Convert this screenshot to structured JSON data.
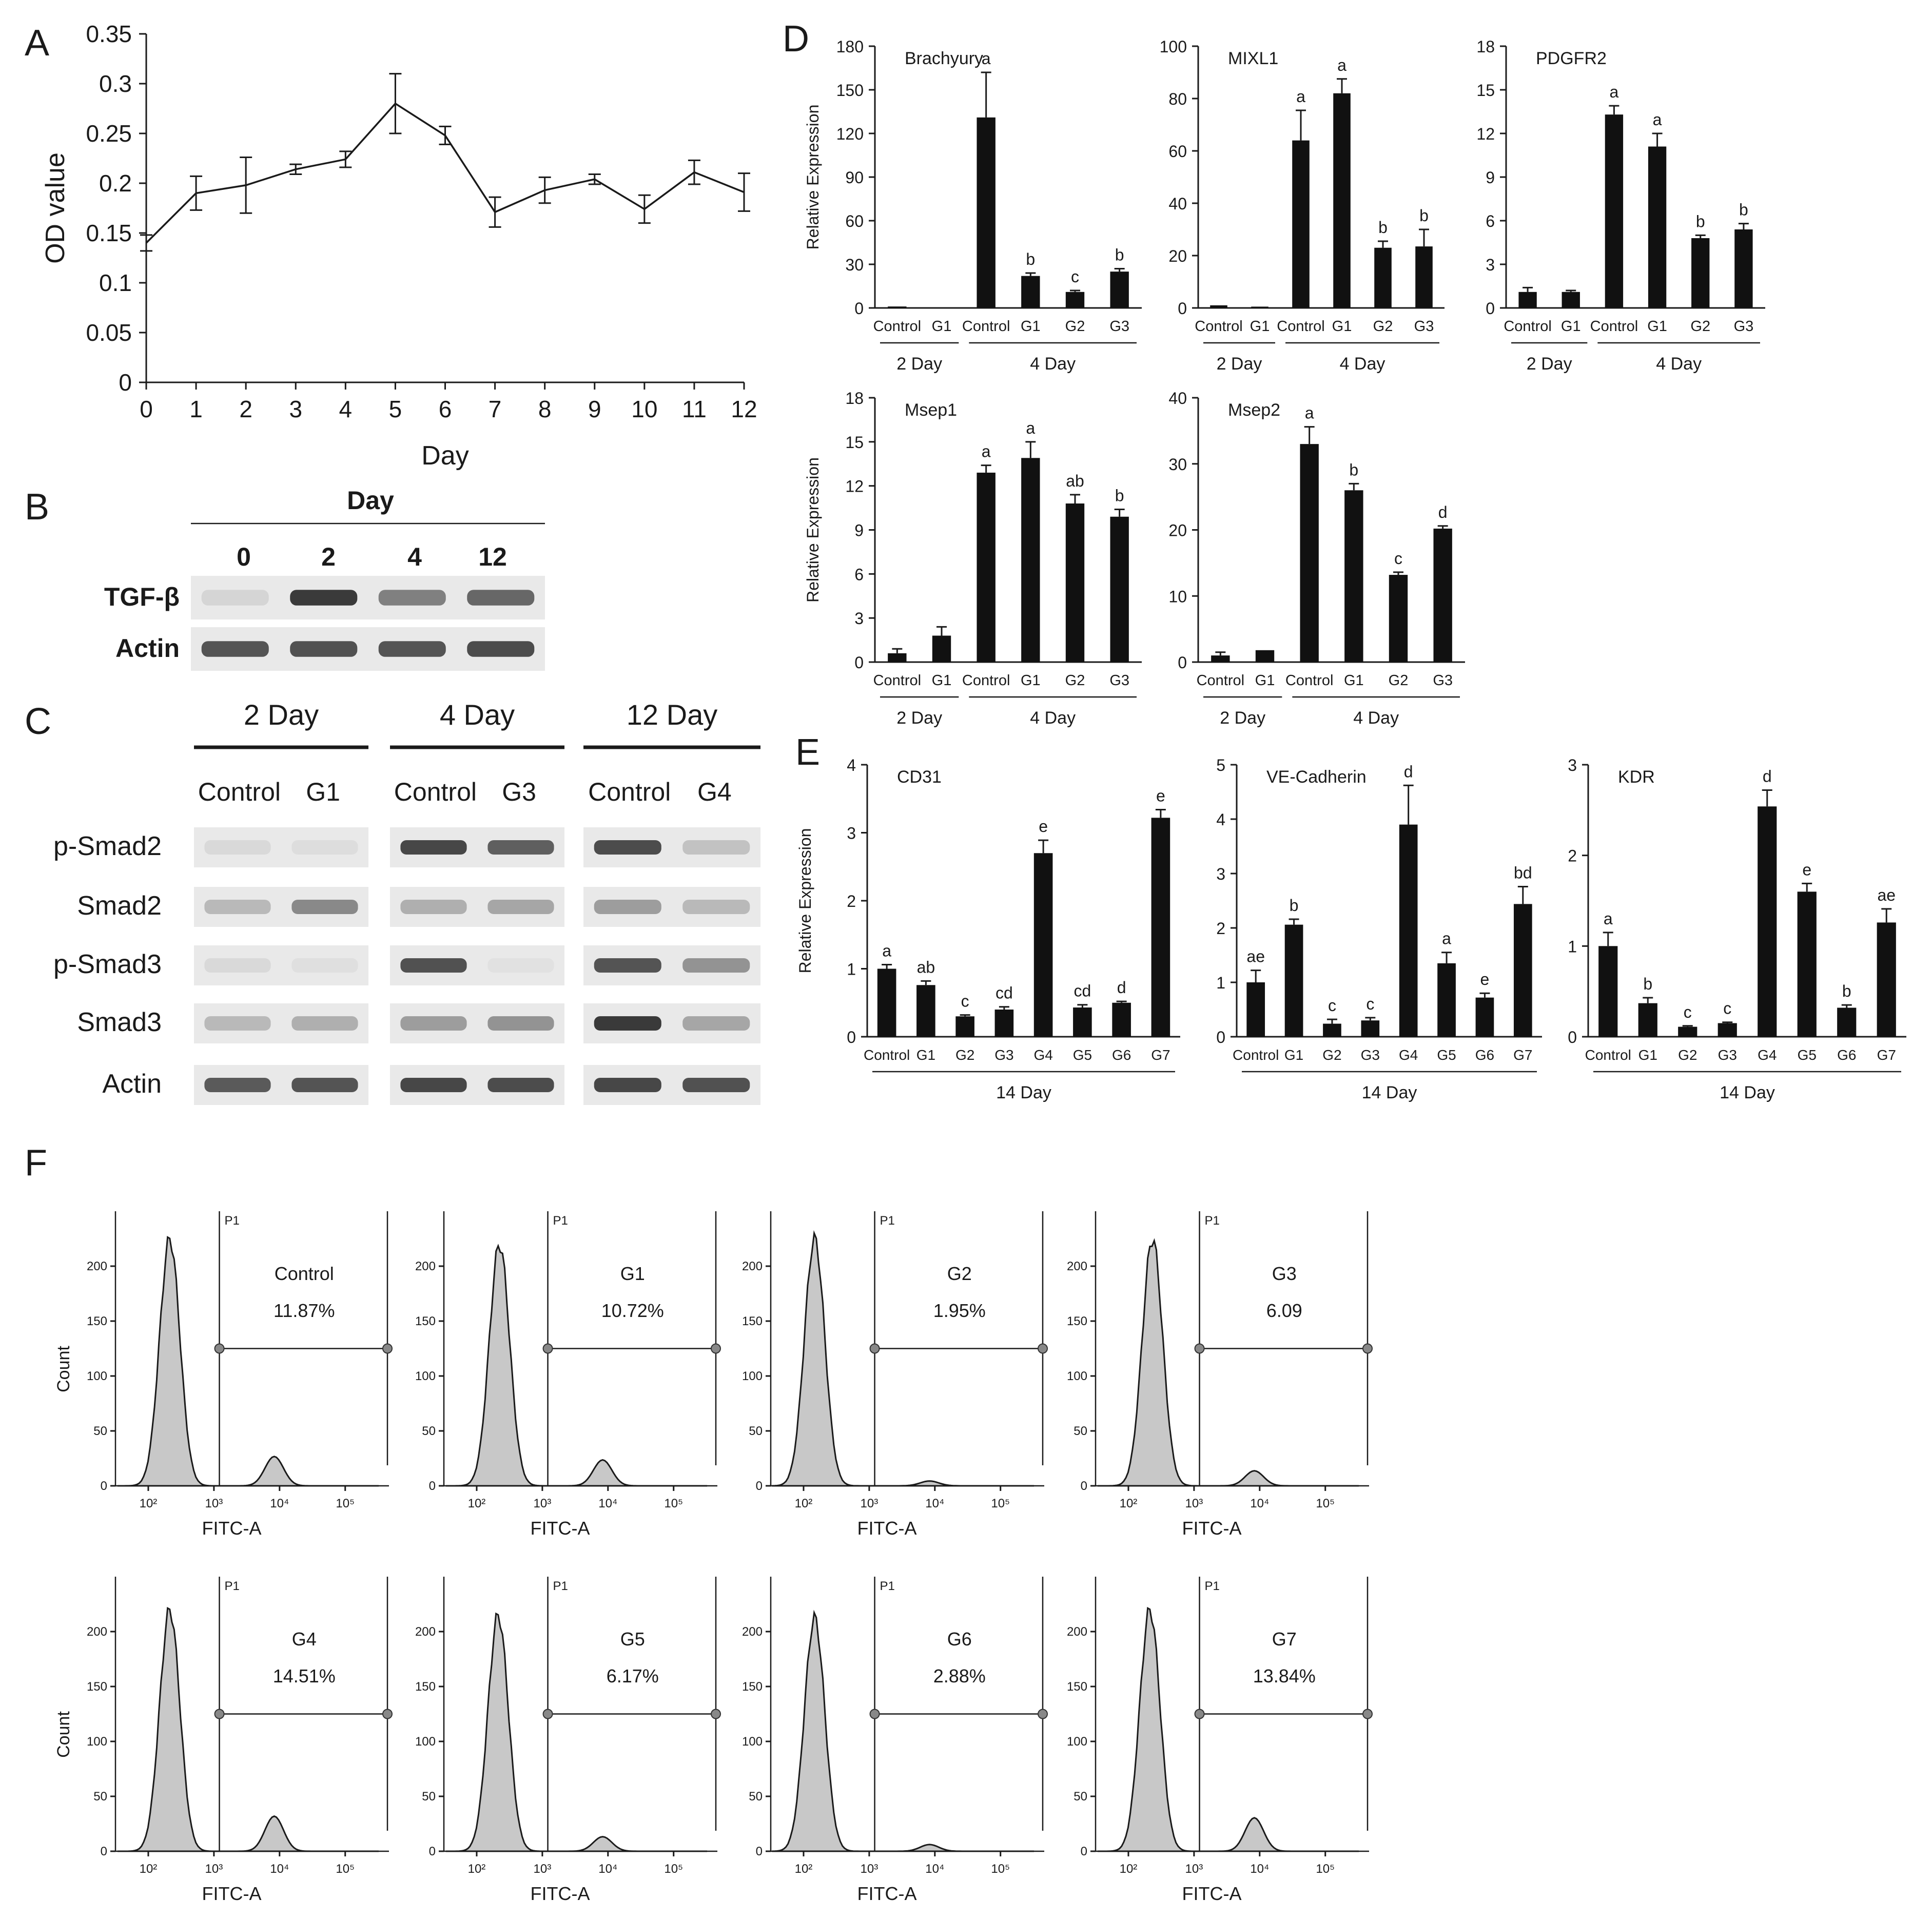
{
  "panel_letters": {
    "a": "A",
    "b": "B",
    "c": "C",
    "d": "D",
    "e": "E",
    "f": "F"
  },
  "chart_data": [
    {
      "id": "A",
      "type": "line",
      "xlabel": "Day",
      "ylabel": "OD  value",
      "x": [
        0,
        1,
        2,
        3,
        4,
        5,
        6,
        7,
        8,
        9,
        10,
        11,
        12
      ],
      "y": [
        0.14,
        0.19,
        0.198,
        0.214,
        0.224,
        0.28,
        0.248,
        0.171,
        0.193,
        0.204,
        0.174,
        0.211,
        0.191
      ],
      "err": [
        0.008,
        0.017,
        0.028,
        0.005,
        0.008,
        0.03,
        0.009,
        0.015,
        0.013,
        0.005,
        0.014,
        0.012,
        0.019
      ],
      "ylim": [
        0,
        0.35
      ],
      "yticks": [
        "0",
        "0.05",
        "0.1",
        "0.15",
        "0.2",
        "0.25",
        "0.3",
        "0.35"
      ],
      "xticks": [
        "0",
        "1",
        "2",
        "3",
        "4",
        "5",
        "6",
        "7",
        "8",
        "9",
        "10",
        "11",
        "12"
      ]
    },
    {
      "id": "D1",
      "type": "bar",
      "title": "Brachyury",
      "ylabel": "Relative Expression",
      "ylim": [
        0,
        180
      ],
      "yticks": [
        "0",
        "30",
        "60",
        "90",
        "120",
        "150",
        "180"
      ],
      "categories": [
        "Control",
        "G1",
        "Control",
        "G1",
        "G2",
        "G3"
      ],
      "values": [
        1,
        0,
        131,
        22,
        11,
        25
      ],
      "err": [
        0,
        0,
        31,
        2,
        1,
        2
      ],
      "letters": [
        "",
        "",
        "a",
        "b",
        "c",
        "b"
      ],
      "groups": [
        {
          "label": "2 Day",
          "from": 0,
          "to": 1
        },
        {
          "label": "4 Day",
          "from": 2,
          "to": 5
        }
      ]
    },
    {
      "id": "D2",
      "type": "bar",
      "title": "MIXL1",
      "ylabel": "",
      "ylim": [
        0,
        100
      ],
      "yticks": [
        "0",
        "20",
        "40",
        "60",
        "80",
        "100"
      ],
      "categories": [
        "Control",
        "G1",
        "Control",
        "G1",
        "G2",
        "G3"
      ],
      "values": [
        1,
        0.5,
        64,
        82,
        23,
        23.5
      ],
      "err": [
        0,
        0,
        11.5,
        5.5,
        2.5,
        6.5
      ],
      "letters": [
        "",
        "",
        "a",
        "a",
        "b",
        "b"
      ],
      "groups": [
        {
          "label": "2 Day",
          "from": 0,
          "to": 1
        },
        {
          "label": "4 Day",
          "from": 2,
          "to": 5
        }
      ]
    },
    {
      "id": "D3",
      "type": "bar",
      "title": "PDGFR2",
      "ylabel": "",
      "ylim": [
        0,
        18
      ],
      "yticks": [
        "0",
        "3",
        "6",
        "9",
        "12",
        "15",
        "18"
      ],
      "categories": [
        "Control",
        "G1",
        "Control",
        "G1",
        "G2",
        "G3"
      ],
      "values": [
        1.1,
        1.1,
        13.3,
        11.1,
        4.8,
        5.4
      ],
      "err": [
        0.3,
        0.1,
        0.6,
        0.9,
        0.2,
        0.4
      ],
      "letters": [
        "",
        "",
        "a",
        "a",
        "b",
        "b"
      ],
      "groups": [
        {
          "label": "2 Day",
          "from": 0,
          "to": 1
        },
        {
          "label": "4 Day",
          "from": 2,
          "to": 5
        }
      ]
    },
    {
      "id": "D4",
      "type": "bar",
      "title": "Msep1",
      "ylabel": "Relative Expression",
      "ylim": [
        0,
        18
      ],
      "yticks": [
        "0",
        "3",
        "6",
        "9",
        "12",
        "15",
        "18"
      ],
      "categories": [
        "Control",
        "G1",
        "Control",
        "G1",
        "G2",
        "G3"
      ],
      "values": [
        0.6,
        1.8,
        12.9,
        13.9,
        10.8,
        9.9
      ],
      "err": [
        0.3,
        0.6,
        0.5,
        1.1,
        0.6,
        0.5
      ],
      "letters": [
        "",
        "",
        "a",
        "a",
        "ab",
        "b"
      ],
      "groups": [
        {
          "label": "2 Day",
          "from": 0,
          "to": 1
        },
        {
          "label": "4 Day",
          "from": 2,
          "to": 5
        }
      ]
    },
    {
      "id": "D5",
      "type": "bar",
      "title": "Msep2",
      "ylabel": "",
      "ylim": [
        0,
        40
      ],
      "yticks": [
        "0",
        "10",
        "20",
        "30",
        "40"
      ],
      "categories": [
        "Control",
        "G1",
        "Control",
        "G1",
        "G2",
        "G3"
      ],
      "values": [
        1,
        1.8,
        33,
        26,
        13.2,
        20.2
      ],
      "err": [
        0.5,
        0,
        2.6,
        1,
        0.4,
        0.4
      ],
      "letters": [
        "",
        "",
        "a",
        "b",
        "c",
        "d"
      ],
      "groups": [
        {
          "label": "2 Day",
          "from": 0,
          "to": 1
        },
        {
          "label": "4 Day",
          "from": 2,
          "to": 5
        }
      ]
    },
    {
      "id": "E1",
      "type": "bar",
      "title": "CD31",
      "ylabel": "Relative Expression",
      "ylim": [
        0,
        4
      ],
      "yticks": [
        "0",
        "1",
        "2",
        "3",
        "4"
      ],
      "categories": [
        "Control",
        "G1",
        "G2",
        "G3",
        "G4",
        "G5",
        "G6",
        "G7"
      ],
      "values": [
        1,
        0.76,
        0.3,
        0.4,
        2.7,
        0.43,
        0.5,
        3.22
      ],
      "err": [
        0.06,
        0.06,
        0.02,
        0.04,
        0.19,
        0.04,
        0.02,
        0.12
      ],
      "letters": [
        "a",
        "ab",
        "c",
        "cd",
        "e",
        "cd",
        "d",
        "e"
      ],
      "groups": [
        {
          "label": "14 Day",
          "from": 0,
          "to": 7
        }
      ]
    },
    {
      "id": "E2",
      "type": "bar",
      "title": "VE-Cadherin",
      "ylabel": "",
      "ylim": [
        0,
        5
      ],
      "yticks": [
        "0",
        "1",
        "2",
        "3",
        "4",
        "5"
      ],
      "categories": [
        "Control",
        "G1",
        "G2",
        "G3",
        "G4",
        "G5",
        "G6",
        "G7"
      ],
      "values": [
        1,
        2.06,
        0.24,
        0.3,
        3.9,
        1.35,
        0.72,
        2.44
      ],
      "err": [
        0.22,
        0.1,
        0.08,
        0.05,
        0.72,
        0.2,
        0.08,
        0.32
      ],
      "letters": [
        "ae",
        "b",
        "c",
        "c",
        "d",
        "a",
        "e",
        "bd"
      ],
      "groups": [
        {
          "label": "14 Day",
          "from": 0,
          "to": 7
        }
      ]
    },
    {
      "id": "E3",
      "type": "bar",
      "title": "KDR",
      "ylabel": "",
      "ylim": [
        0,
        3
      ],
      "yticks": [
        "0",
        "1",
        "2",
        "3"
      ],
      "categories": [
        "Control",
        "G1",
        "G2",
        "G3",
        "G4",
        "G5",
        "G6",
        "G7"
      ],
      "values": [
        1,
        0.37,
        0.11,
        0.15,
        2.54,
        1.6,
        0.32,
        1.26
      ],
      "err": [
        0.15,
        0.06,
        0.01,
        0.01,
        0.18,
        0.09,
        0.03,
        0.15
      ],
      "letters": [
        "a",
        "b",
        "c",
        "c",
        "d",
        "e",
        "b",
        "ae"
      ],
      "groups": [
        {
          "label": "14 Day",
          "from": 0,
          "to": 7
        }
      ]
    },
    {
      "id": "F",
      "type": "histogram",
      "xlabel": "FITC-A",
      "ylabel": "Count",
      "gate": "P1",
      "yticks": [
        "0",
        "50",
        "100",
        "150",
        "200"
      ],
      "xticks": [
        "10²",
        "10³",
        "10⁴",
        "10⁵"
      ],
      "panels": [
        {
          "name": "Control",
          "percent": "11.87%"
        },
        {
          "name": "G1",
          "percent": "10.72%"
        },
        {
          "name": "G2",
          "percent": "1.95%"
        },
        {
          "name": "G3",
          "percent": "6.09"
        },
        {
          "name": "G4",
          "percent": "14.51%"
        },
        {
          "name": "G5",
          "percent": "6.17%"
        },
        {
          "name": "G6",
          "percent": "2.88%"
        },
        {
          "name": "G7",
          "percent": "13.84%"
        }
      ]
    }
  ],
  "blot_b": {
    "header": "Day",
    "lanes": [
      "0",
      "2",
      "4",
      "12"
    ],
    "rows": [
      {
        "label": "TGF-β",
        "intensity": [
          0.1,
          0.92,
          0.55,
          0.68
        ]
      },
      {
        "label": "Actin",
        "intensity": [
          0.78,
          0.8,
          0.78,
          0.82
        ]
      }
    ]
  },
  "blot_c": {
    "groups": [
      {
        "title": "2 Day",
        "lanes": [
          "Control",
          "G1"
        ]
      },
      {
        "title": "4 Day",
        "lanes": [
          "Control",
          "G3"
        ]
      },
      {
        "title": "12 Day",
        "lanes": [
          "Control",
          "G4"
        ]
      }
    ],
    "rows": [
      {
        "label": "p-Smad2",
        "intensity": [
          0.08,
          0.06,
          0.85,
          0.72,
          0.82,
          0.2
        ]
      },
      {
        "label": "Smad2",
        "intensity": [
          0.25,
          0.5,
          0.3,
          0.35,
          0.4,
          0.25
        ]
      },
      {
        "label": "p-Smad3",
        "intensity": [
          0.08,
          0.05,
          0.8,
          0.04,
          0.78,
          0.45
        ]
      },
      {
        "label": "Smad3",
        "intensity": [
          0.25,
          0.3,
          0.4,
          0.45,
          0.92,
          0.35
        ]
      },
      {
        "label": "Actin",
        "intensity": [
          0.75,
          0.78,
          0.85,
          0.82,
          0.85,
          0.8
        ]
      }
    ]
  }
}
